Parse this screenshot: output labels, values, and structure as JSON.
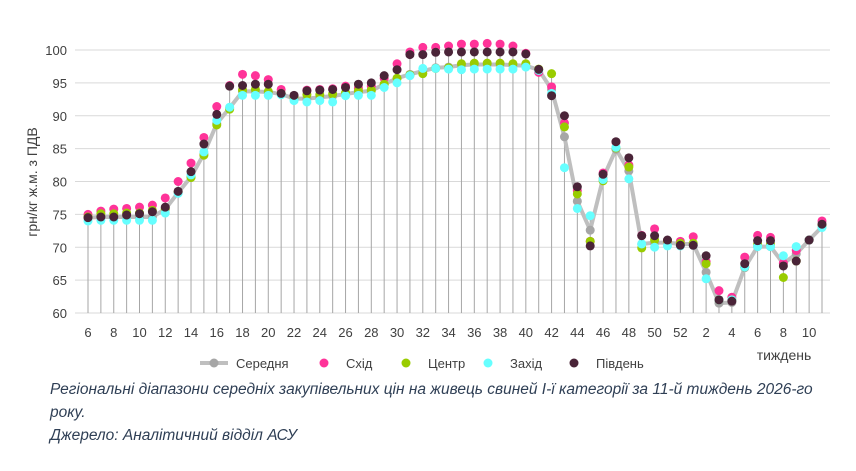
{
  "chart_data": {
    "type": "line",
    "ylabel": "грн/кг ж.м. з ПДВ",
    "xlabel": "тиждень",
    "ylim": [
      60,
      100
    ],
    "yticks": [
      60,
      65,
      70,
      75,
      80,
      85,
      90,
      95,
      100
    ],
    "grid": true,
    "legend_position": "bottom",
    "x": [
      6,
      7,
      8,
      9,
      10,
      11,
      12,
      13,
      14,
      15,
      16,
      17,
      18,
      19,
      20,
      21,
      22,
      23,
      24,
      25,
      26,
      27,
      28,
      29,
      30,
      31,
      32,
      33,
      34,
      35,
      36,
      37,
      38,
      39,
      40,
      41,
      42,
      43,
      44,
      45,
      46,
      47,
      48,
      49,
      50,
      51,
      52,
      1,
      2,
      3,
      4,
      5,
      6,
      7,
      8,
      9,
      10,
      11
    ],
    "series": [
      {
        "name": "Середня",
        "color": "#bfbfbf",
        "style": "line",
        "values": [
          74.5,
          74.6,
          74.6,
          74.6,
          74.6,
          74.6,
          75.8,
          78.3,
          80.7,
          84.2,
          88.8,
          91.2,
          93.7,
          93.7,
          93.6,
          93.3,
          92.6,
          92.6,
          92.8,
          93.0,
          93.3,
          93.6,
          93.8,
          94.8,
          95.7,
          96.3,
          96.8,
          97.3,
          97.4,
          97.7,
          97.8,
          97.8,
          97.8,
          97.7,
          97.6,
          97.0,
          94.0,
          86.8,
          77.0,
          72.6,
          80.5,
          84.9,
          81.6,
          70.5,
          70.7,
          70.7,
          70.5,
          70.5,
          66.2,
          61.5,
          61.6,
          66.9,
          70.1,
          70.1,
          67.5,
          69.0,
          71.1,
          73.1
        ]
      },
      {
        "name": "Схід",
        "color": "#ff3399",
        "style": "marker",
        "values": [
          75.0,
          75.5,
          75.8,
          75.9,
          76.1,
          76.4,
          77.5,
          80.0,
          82.8,
          86.7,
          91.4,
          94.6,
          96.3,
          96.1,
          95.5,
          94.0,
          93.0,
          93.9,
          94.0,
          94.1,
          94.5,
          94.2,
          94.5,
          95.7,
          97.9,
          99.7,
          100.4,
          100.4,
          100.6,
          100.9,
          100.9,
          101.0,
          100.9,
          100.6,
          99.5,
          96.6,
          94.4,
          88.9,
          78.6,
          70.9,
          81.3,
          86.0,
          82.5,
          71.8,
          72.8,
          71.0,
          70.9,
          71.6,
          67.8,
          63.4,
          62.4,
          68.5,
          71.8,
          71.5,
          67.6,
          69.5,
          71.1,
          74.0
        ]
      },
      {
        "name": "Центр",
        "color": "#99cc00",
        "style": "marker",
        "values": [
          74.6,
          75.1,
          75.1,
          75.2,
          75.2,
          75.6,
          75.9,
          78.4,
          80.6,
          84.0,
          88.6,
          91.0,
          93.9,
          94.0,
          93.7,
          93.4,
          92.9,
          93.2,
          93.2,
          93.3,
          93.5,
          93.8,
          93.9,
          94.8,
          95.7,
          96.2,
          96.4,
          97.2,
          97.3,
          97.9,
          98.0,
          98.0,
          98.0,
          97.9,
          97.9,
          97.1,
          96.4,
          88.3,
          78.1,
          70.9,
          80.1,
          85.1,
          82.2,
          69.9,
          71.1,
          71.0,
          70.6,
          70.6,
          67.5,
          62.0,
          62.0,
          67.0,
          70.5,
          70.5,
          65.4,
          67.9,
          71.1,
          73.3
        ]
      },
      {
        "name": "Захід",
        "color": "#66ffff",
        "style": "marker",
        "values": [
          74.0,
          74.1,
          74.1,
          74.1,
          74.1,
          74.1,
          75.2,
          78.2,
          81.0,
          84.5,
          89.3,
          91.3,
          93.1,
          93.1,
          93.1,
          93.2,
          92.3,
          92.1,
          92.3,
          92.1,
          93.05,
          93.1,
          93.1,
          94.3,
          95.0,
          96.1,
          97.2,
          97.2,
          97.1,
          97.0,
          97.1,
          97.1,
          97.1,
          97.1,
          97.4,
          96.9,
          93.4,
          82.1,
          75.9,
          74.8,
          80.3,
          85.2,
          80.4,
          70.5,
          70.0,
          70.2,
          70.2,
          70.3,
          65.2,
          62.0,
          62.0,
          67.0,
          70.1,
          70.1,
          68.7,
          70.1,
          71.1,
          73.0
        ]
      },
      {
        "name": "Південь",
        "color": "#4a2438",
        "style": "marker",
        "values": [
          74.5,
          74.6,
          74.6,
          74.9,
          75.1,
          75.4,
          76.1,
          78.5,
          81.5,
          85.7,
          90.2,
          94.5,
          94.6,
          94.8,
          94.8,
          93.4,
          93.1,
          93.8,
          93.9,
          94.0,
          94.3,
          94.8,
          95.0,
          96.1,
          97.0,
          99.3,
          99.3,
          99.65,
          99.7,
          99.7,
          99.7,
          99.7,
          99.7,
          99.7,
          99.4,
          97.05,
          93.05,
          90.0,
          79.2,
          70.2,
          81.1,
          86.05,
          83.6,
          71.75,
          71.75,
          71.1,
          70.3,
          70.3,
          68.7,
          62.0,
          61.8,
          67.5,
          71.0,
          71.0,
          67.15,
          67.9,
          71.1,
          73.5
        ]
      }
    ]
  },
  "caption": {
    "line1": "Регіональні діапазони середніх закупівельних цін на живець свиней І-ї категорії за 11-й тиждень 2026-го року.",
    "line2": "Джерело: Аналітичний відділ АСУ"
  }
}
